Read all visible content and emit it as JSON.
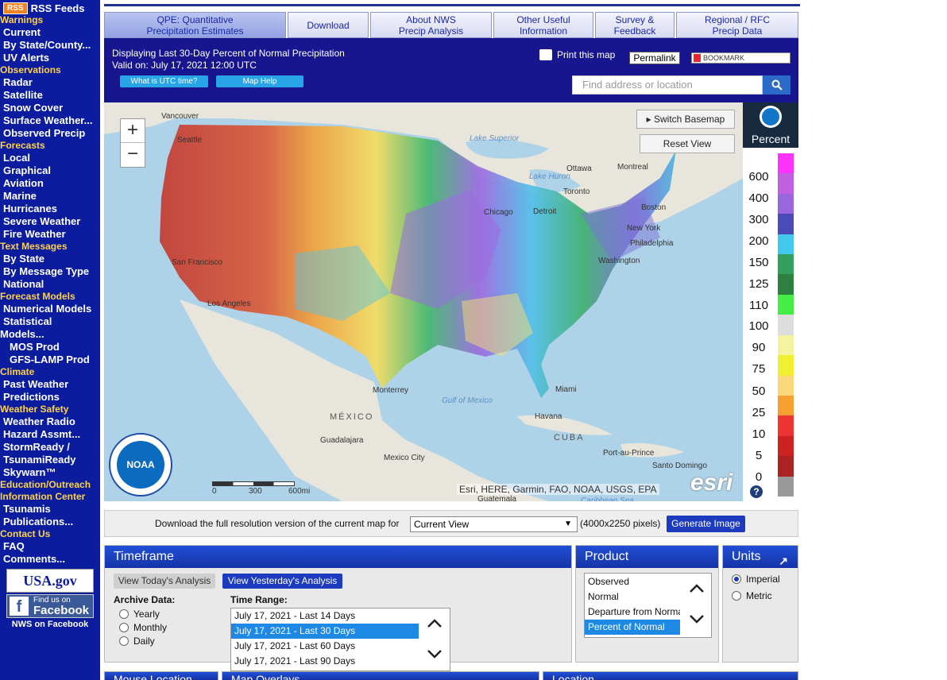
{
  "sidebar": {
    "rss_badge": "RSS",
    "rss_label": "RSS Feeds",
    "items": [
      {
        "t": "h",
        "label": "Warnings"
      },
      {
        "t": "i",
        "label": "Current"
      },
      {
        "t": "i",
        "label": "By State/County..."
      },
      {
        "t": "i",
        "label": "UV Alerts"
      },
      {
        "t": "h",
        "label": "Observations"
      },
      {
        "t": "i",
        "label": "Radar"
      },
      {
        "t": "i",
        "label": "Satellite"
      },
      {
        "t": "i",
        "label": "Snow Cover"
      },
      {
        "t": "i",
        "label": "Surface Weather..."
      },
      {
        "t": "i",
        "label": "Observed Precip"
      },
      {
        "t": "h",
        "label": "Forecasts"
      },
      {
        "t": "i",
        "label": "Local"
      },
      {
        "t": "i",
        "label": "Graphical"
      },
      {
        "t": "i",
        "label": "Aviation"
      },
      {
        "t": "i",
        "label": "Marine"
      },
      {
        "t": "i",
        "label": "Hurricanes"
      },
      {
        "t": "i",
        "label": "Severe Weather"
      },
      {
        "t": "i",
        "label": "Fire Weather"
      },
      {
        "t": "h",
        "label": "Text Messages"
      },
      {
        "t": "i",
        "label": "By State"
      },
      {
        "t": "i",
        "label": "By Message Type"
      },
      {
        "t": "i",
        "label": "National"
      },
      {
        "t": "h",
        "label": "Forecast Models"
      },
      {
        "t": "i",
        "label": "Numerical Models"
      },
      {
        "t": "i",
        "label": "Statistical"
      },
      {
        "t": "i0",
        "label": "Models..."
      },
      {
        "t": "i2",
        "label": "MOS Prod"
      },
      {
        "t": "i2",
        "label": "GFS-LAMP Prod"
      },
      {
        "t": "h",
        "label": "Climate"
      },
      {
        "t": "i",
        "label": "Past Weather"
      },
      {
        "t": "i",
        "label": "Predictions"
      },
      {
        "t": "h",
        "label": "Weather Safety"
      },
      {
        "t": "i",
        "label": "Weather Radio"
      },
      {
        "t": "i",
        "label": "Hazard Assmt..."
      },
      {
        "t": "i",
        "label": "StormReady /"
      },
      {
        "t": "i",
        "label": "TsunamiReady"
      },
      {
        "t": "i",
        "label": "Skywarn™"
      },
      {
        "t": "h",
        "label": "Education/Outreach"
      },
      {
        "t": "h",
        "label": "Information Center"
      },
      {
        "t": "i",
        "label": "Tsunamis"
      },
      {
        "t": "i",
        "label": "Publications..."
      },
      {
        "t": "h",
        "label": "Contact Us"
      },
      {
        "t": "i",
        "label": "FAQ"
      },
      {
        "t": "i",
        "label": "Comments..."
      }
    ],
    "usa_gov": "USA.gov",
    "facebook_small": "Find us on",
    "facebook_big": "Facebook",
    "nws_facebook": "NWS on Facebook"
  },
  "tabs": [
    {
      "line1": "QPE: Quantitative",
      "line2": "Precipitation Estimates",
      "active": true
    },
    {
      "line1": "Download",
      "line2": "",
      "active": false
    },
    {
      "line1": "About NWS",
      "line2": "Precip Analysis",
      "active": false
    },
    {
      "line1": "Other Useful",
      "line2": "Information",
      "active": false
    },
    {
      "line1": "Survey &",
      "line2": "Feedback",
      "active": false
    },
    {
      "line1": "Regional / RFC",
      "line2": "Precip Data",
      "active": false
    }
  ],
  "header": {
    "displaying": "Displaying Last 30-Day Percent of Normal Precipitation",
    "valid_on": "Valid on: July 17, 2021 12:00 UTC",
    "utc_button": "What is UTC time?",
    "help_button": "Map Help",
    "print_label": "Print this map",
    "permalink": "Permalink",
    "bookmark": "BOOKMARK",
    "search_placeholder": "Find address or location"
  },
  "map": {
    "zoom_in": "+",
    "zoom_out": "−",
    "switch_basemap": "Switch Basemap",
    "reset_view": "Reset View",
    "attribution": "Esri, HERE, Garmin, FAO, NOAA, USGS, EPA",
    "esri": "esri",
    "noaa": "NOAA",
    "scale_labels": [
      "0",
      "300",
      "600mi"
    ],
    "cities": [
      {
        "name": "Vancouver",
        "cls": ""
      },
      {
        "name": "Seattle",
        "cls": ""
      },
      {
        "name": "Lake Superior",
        "cls": "blue"
      },
      {
        "name": "Lake Huron",
        "cls": "blue"
      },
      {
        "name": "Ottawa",
        "cls": ""
      },
      {
        "name": "Montreal",
        "cls": ""
      },
      {
        "name": "Toronto",
        "cls": ""
      },
      {
        "name": "Chicago",
        "cls": ""
      },
      {
        "name": "Detroit",
        "cls": ""
      },
      {
        "name": "Boston",
        "cls": ""
      },
      {
        "name": "New York",
        "cls": ""
      },
      {
        "name": "Philadelphia",
        "cls": ""
      },
      {
        "name": "Washington",
        "cls": ""
      },
      {
        "name": "San Francisco",
        "cls": ""
      },
      {
        "name": "Los Angeles",
        "cls": ""
      },
      {
        "name": "Monterrey",
        "cls": ""
      },
      {
        "name": "Gulf of Mexico",
        "cls": "blue"
      },
      {
        "name": "Miami",
        "cls": ""
      },
      {
        "name": "MÉXICO",
        "cls": "country"
      },
      {
        "name": "Havana",
        "cls": ""
      },
      {
        "name": "CUBA",
        "cls": "country"
      },
      {
        "name": "Guadalajara",
        "cls": ""
      },
      {
        "name": "Mexico City",
        "cls": ""
      },
      {
        "name": "Port-au-Prince",
        "cls": ""
      },
      {
        "name": "Santo Domingo",
        "cls": ""
      },
      {
        "name": "Guatemala",
        "cls": ""
      },
      {
        "name": "Caribbean Sea",
        "cls": "blue"
      }
    ]
  },
  "legend": {
    "title": "Percent",
    "labels": [
      "600",
      "400",
      "300",
      "200",
      "150",
      "125",
      "110",
      "100",
      "90",
      "75",
      "50",
      "25",
      "10",
      "5",
      "0"
    ],
    "colors": [
      "#ff33ff",
      "#c060e0",
      "#9966dd",
      "#4a4ab8",
      "#44c8ee",
      "#33a060",
      "#2e8040",
      "#44ee44",
      "#dddddd",
      "#f4f4a0",
      "#f0f030",
      "#f9d77a",
      "#f5a030",
      "#ee3333",
      "#cc2222",
      "#aa2222",
      "#999999"
    ],
    "help": "?"
  },
  "download": {
    "text": "Download the full resolution version of the current map for",
    "select_value": "Current View",
    "pixels": "(4000x2250 pixels)",
    "generate": "Generate Image"
  },
  "timeframe": {
    "title": "Timeframe",
    "today": "View Today's Analysis",
    "yesterday": "View Yesterday's Analysis",
    "archive_label": "Archive Data:",
    "archive_options": [
      "Yearly",
      "Monthly",
      "Daily"
    ],
    "range_label": "Time Range:",
    "range_options": [
      {
        "label": "July 17, 2021 - Last 14 Days",
        "selected": false
      },
      {
        "label": "July 17, 2021 - Last 30 Days",
        "selected": true
      },
      {
        "label": "July 17, 2021 - Last 60 Days",
        "selected": false
      },
      {
        "label": "July 17, 2021 - Last 90 Days",
        "selected": false
      }
    ]
  },
  "product": {
    "title": "Product",
    "options": [
      {
        "label": "Observed",
        "selected": false
      },
      {
        "label": "Normal",
        "selected": false
      },
      {
        "label": "Departure from Normal",
        "selected": false
      },
      {
        "label": "Percent of Normal",
        "selected": true
      }
    ]
  },
  "units": {
    "title": "Units",
    "options": [
      {
        "label": "Imperial",
        "selected": true
      },
      {
        "label": "Metric",
        "selected": false
      }
    ]
  },
  "bottom": {
    "mouse_location": "Mouse Location",
    "map_overlays": "Map Overlays",
    "location": "Location"
  }
}
